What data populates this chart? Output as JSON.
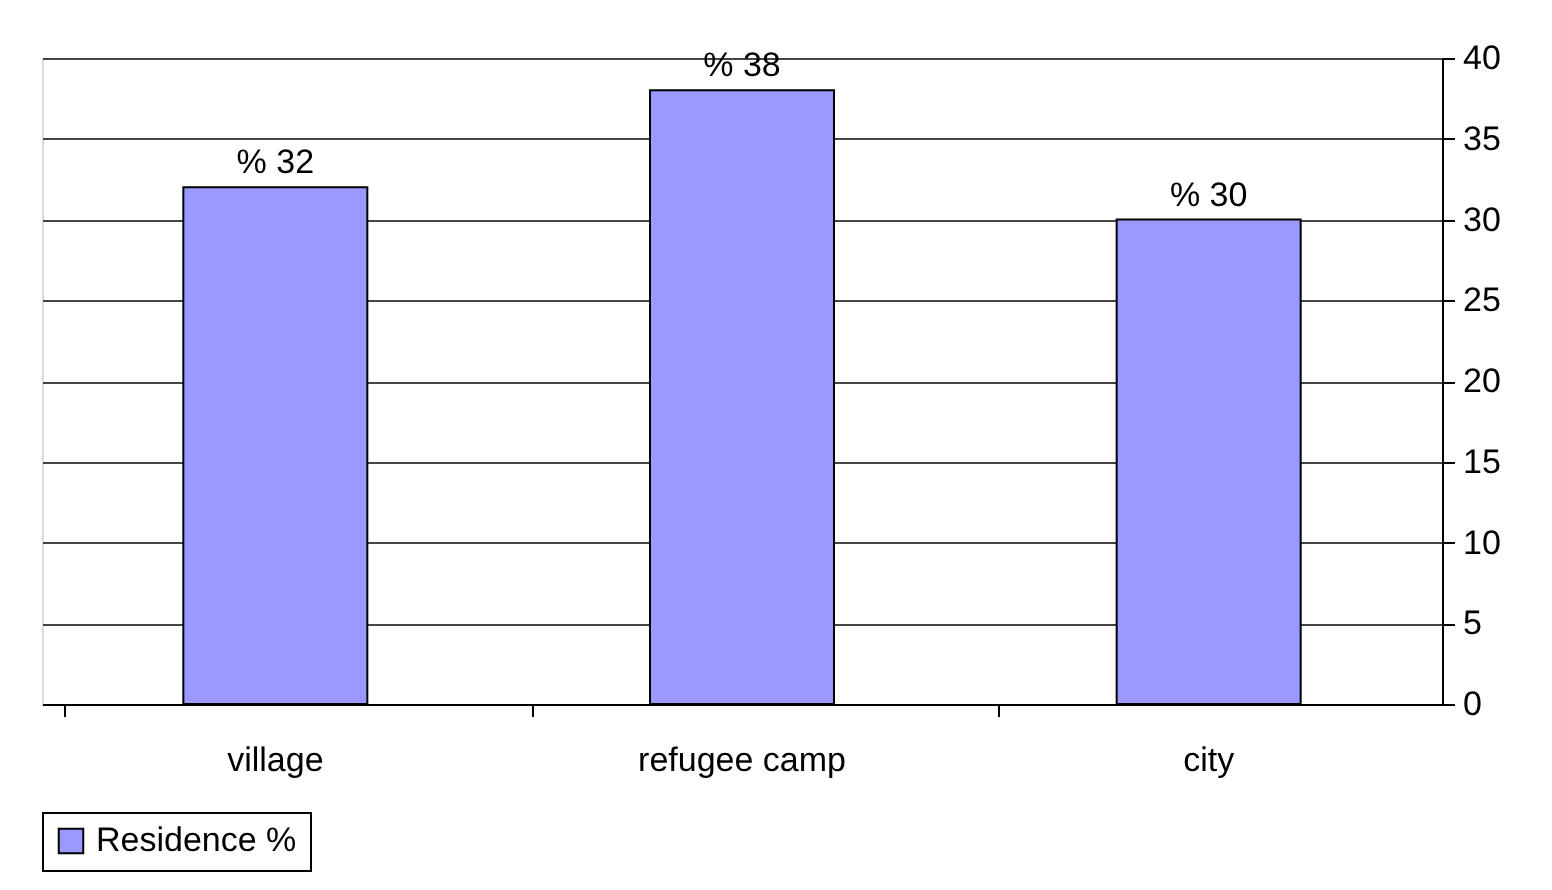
{
  "chart_data": {
    "type": "bar",
    "categories": [
      "village",
      "refugee camp",
      "city"
    ],
    "series": [
      {
        "name": "Residence %",
        "color": "#9999ff",
        "values": [
          32,
          38,
          30
        ],
        "value_labels": [
          "% 32",
          "% 38",
          "% 30"
        ]
      }
    ],
    "ylim": [
      0,
      40
    ],
    "yticks": [
      0,
      5,
      10,
      15,
      20,
      25,
      30,
      35,
      40
    ],
    "grid": "y",
    "legend": "bottom"
  }
}
